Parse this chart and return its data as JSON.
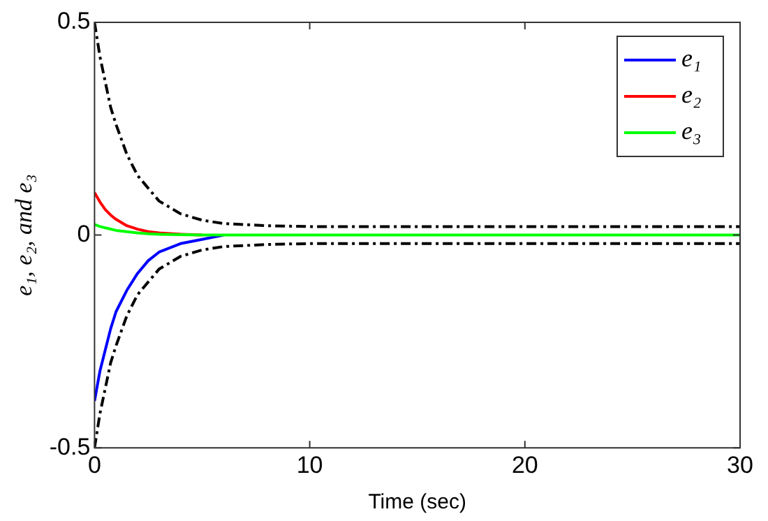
{
  "chart_data": {
    "type": "line",
    "xlabel": "Time (sec)",
    "ylabel": "e₁, e₂, and e₃",
    "x": [
      0,
      0.25,
      0.5,
      0.75,
      1,
      1.5,
      2,
      2.5,
      3,
      4,
      5,
      6,
      8,
      10,
      15,
      20,
      25,
      30
    ],
    "xlim": [
      0,
      30
    ],
    "xticks": [
      0,
      10,
      20,
      30
    ],
    "ylim": [
      -0.5,
      0.5
    ],
    "yticks": [
      -0.5,
      0,
      0.5
    ],
    "grid": false,
    "legend": "top right",
    "marker": "none",
    "series": [
      {
        "name": "e₁",
        "color": "#0000ff",
        "values": [
          -0.39,
          -0.32,
          -0.27,
          -0.22,
          -0.18,
          -0.13,
          -0.09,
          -0.06,
          -0.04,
          -0.02,
          -0.01,
          0,
          null,
          null,
          null,
          null,
          null,
          null
        ]
      },
      {
        "name": "e₂",
        "color": "#ff0000",
        "values": [
          0.1,
          0.078,
          0.06,
          0.047,
          0.037,
          0.022,
          0.014,
          0.008,
          0.005,
          0.002,
          0,
          null,
          null,
          null,
          null,
          null,
          null,
          null
        ]
      },
      {
        "name": "e₃",
        "color": "#00ff00",
        "values": [
          0.025,
          0.02,
          0.017,
          0.014,
          0.011,
          0.008,
          0.005,
          0.003,
          0.002,
          0.001,
          0,
          0,
          0,
          0,
          0,
          0,
          0,
          0
        ]
      },
      {
        "color": "#000000",
        "line_style": "dashed",
        "values": [
          0.5,
          0.42,
          0.36,
          0.3,
          0.26,
          0.19,
          0.14,
          0.11,
          0.08,
          0.05,
          0.035,
          0.027,
          0.022,
          0.02,
          0.02,
          0.02,
          0.02,
          0.02
        ]
      },
      {
        "color": "#000000",
        "line_style": "dashed",
        "values": [
          -0.5,
          -0.42,
          -0.36,
          -0.3,
          -0.26,
          -0.19,
          -0.14,
          -0.11,
          -0.08,
          -0.05,
          -0.035,
          -0.027,
          -0.022,
          -0.02,
          -0.02,
          -0.02,
          -0.02,
          -0.02
        ]
      }
    ]
  }
}
